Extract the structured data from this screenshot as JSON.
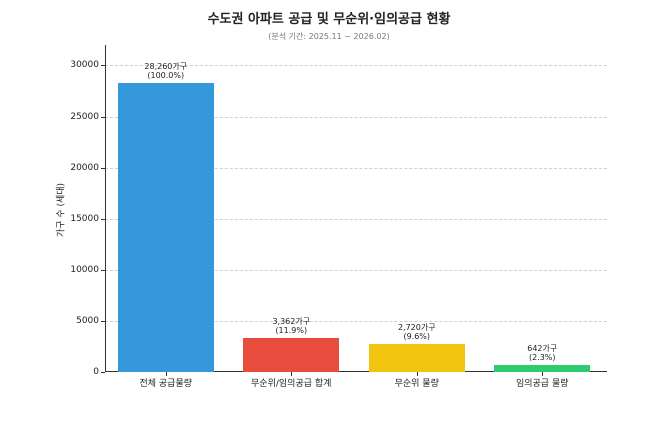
{
  "chart_data": {
    "type": "bar",
    "title": "수도권 아파트 공급 및 무순위·임의공급 현황",
    "subtitle": "(분석 기간: 2025.11 ~ 2026.02)",
    "xlabel": "",
    "ylabel": "가구 수 (세대)",
    "ylim": [
      0,
      32000
    ],
    "yticks": [
      0,
      5000,
      10000,
      15000,
      20000,
      25000,
      30000
    ],
    "grid": true,
    "categories": [
      "전체 공급물량",
      "무순위/임의공급 합계",
      "무순위 물량",
      "임의공급 물량"
    ],
    "values": [
      28260,
      3362,
      2720,
      642
    ],
    "percentages": [
      "100.0%",
      "11.9%",
      "9.6%",
      "2.3%"
    ],
    "colors": [
      "#3498db",
      "#e74c3c",
      "#f1c40f",
      "#2ecc71"
    ],
    "data_labels": [
      {
        "line1": "28,260가구",
        "line2": "(100.0%)"
      },
      {
        "line1": "3,362가구",
        "line2": "(11.9%)"
      },
      {
        "line1": "2,720가구",
        "line2": "(9.6%)"
      },
      {
        "line1": "642가구",
        "line2": "(2.3%)"
      }
    ]
  }
}
